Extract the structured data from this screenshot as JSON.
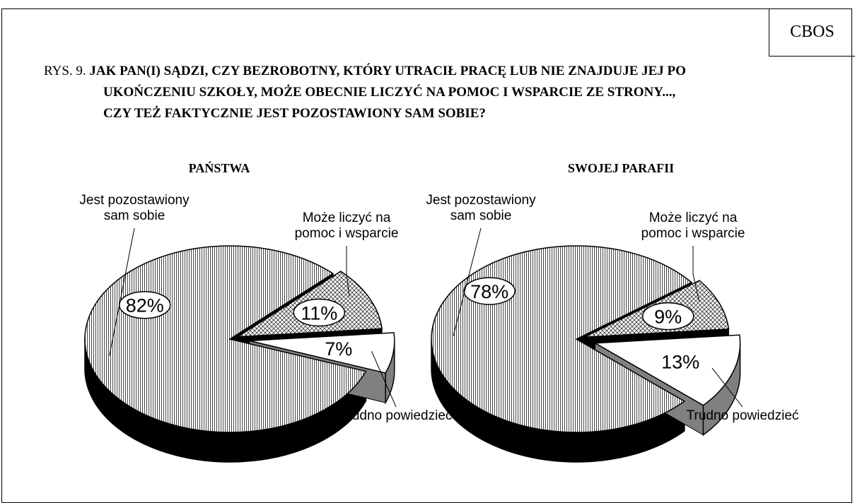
{
  "brand": "CBOS",
  "figure_label": "RYS. 9.",
  "question": "JAK PAN(I) SĄDZI, CZY BEZROBOTNY, KTÓRY UTRACIŁ PRACĘ LUB NIE ZNAJDUJE JEJ PO UKOŃCZENIU SZKOŁY, MOŻE OBECNIE LICZYĆ NA POMOC I WSPARCIE ZE STRONY..., CZY TEŻ FAKTYCZNIE JEST POZOSTAWIONY SAM SOBIE?",
  "chart_data": [
    {
      "type": "pie",
      "title": "PAŃSTWA",
      "categories": [
        "Jest pozostawiony sam sobie",
        "Może liczyć na pomoc i wsparcie",
        "Trudno powiedzieć"
      ],
      "values": [
        82,
        11,
        7
      ],
      "value_labels": [
        "82%",
        "11%",
        "7%"
      ]
    },
    {
      "type": "pie",
      "title": "SWOJEJ PARAFII",
      "categories": [
        "Jest pozostawiony sam sobie",
        "Może liczyć na pomoc i wsparcie",
        "Trudno powiedzieć"
      ],
      "values": [
        78,
        9,
        13
      ],
      "value_labels": [
        "78%",
        "9%",
        "13%"
      ]
    }
  ]
}
